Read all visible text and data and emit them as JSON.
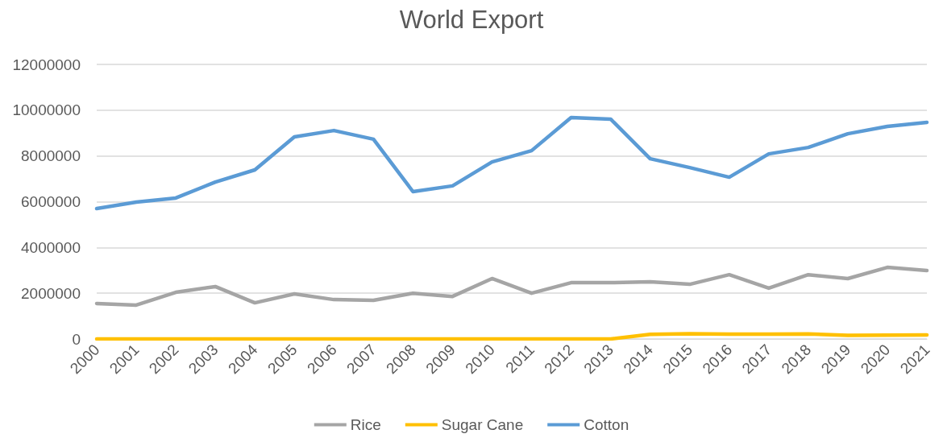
{
  "chart_data": {
    "type": "line",
    "title": "World Export",
    "categories": [
      "2000",
      "2001",
      "2002",
      "2003",
      "2004",
      "2005",
      "2006",
      "2007",
      "2008",
      "2009",
      "2010",
      "2011",
      "2012",
      "2013",
      "2014",
      "2015",
      "2016",
      "2017",
      "2018",
      "2019",
      "2020",
      "2021"
    ],
    "series": [
      {
        "name": "Rice",
        "color": "#a5a5a5",
        "values": [
          1550000,
          1480000,
          2040000,
          2290000,
          1580000,
          1970000,
          1720000,
          1690000,
          2000000,
          1860000,
          2640000,
          2000000,
          2460000,
          2460000,
          2500000,
          2390000,
          2810000,
          2220000,
          2810000,
          2640000,
          3130000,
          2990000
        ]
      },
      {
        "name": "Sugar Cane",
        "color": "#ffc000",
        "values": [
          0,
          0,
          0,
          0,
          0,
          0,
          0,
          0,
          0,
          0,
          0,
          0,
          0,
          0,
          200000,
          230000,
          210000,
          210000,
          220000,
          160000,
          170000,
          180000
        ]
      },
      {
        "name": "Cotton",
        "color": "#5b9bd5",
        "values": [
          5700000,
          5980000,
          6160000,
          6860000,
          7390000,
          8830000,
          9110000,
          8730000,
          6440000,
          6690000,
          7740000,
          8230000,
          9680000,
          9610000,
          7880000,
          7490000,
          7070000,
          8090000,
          8370000,
          8970000,
          9290000,
          9470000
        ]
      }
    ],
    "ylim": [
      0,
      12000000
    ],
    "yticks": [
      0,
      2000000,
      4000000,
      6000000,
      8000000,
      10000000,
      12000000
    ],
    "grid": "y",
    "legend": "bottom",
    "marker": "none",
    "line_style": "solid"
  }
}
